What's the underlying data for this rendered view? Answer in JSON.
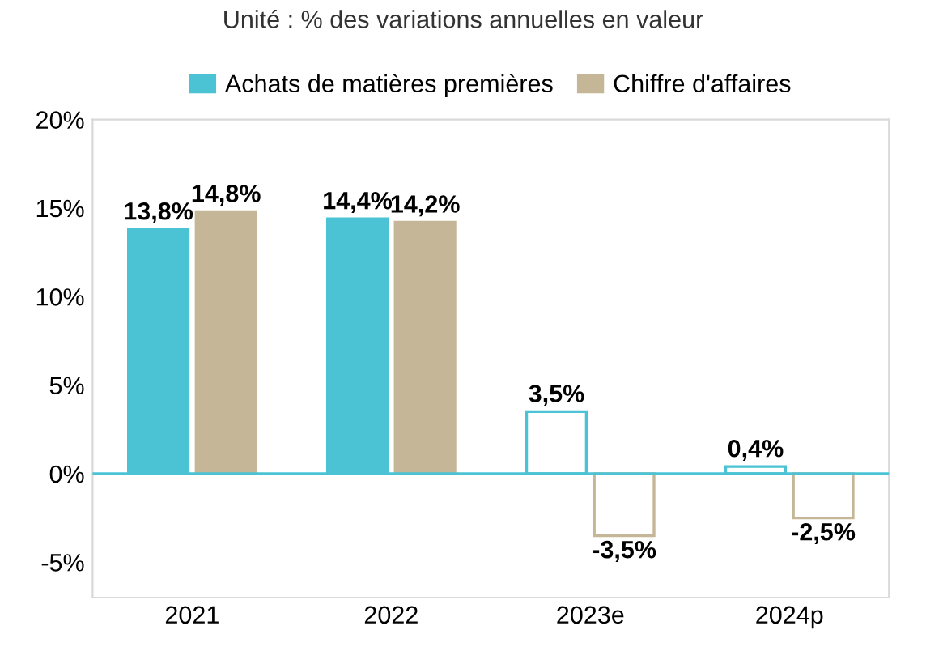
{
  "chart_data": {
    "type": "bar",
    "title": "Unité : % des variations annuelles en valeur",
    "categories": [
      "2021",
      "2022",
      "2023e",
      "2024p"
    ],
    "series": [
      {
        "name": "Achats de matières premières",
        "color": "#4bc3d4",
        "colors": [
          "#4bc3d4",
          "#4bc3d4",
          "#ffffff",
          "#ffffff"
        ],
        "values": [
          13.8,
          14.4,
          3.5,
          0.4
        ],
        "value_labels": [
          "13,8%",
          "14,4%",
          "3,5%",
          "0,4%"
        ]
      },
      {
        "name": "Chiffre d'affaires",
        "color": "#c4b696",
        "colors": [
          "#c4b696",
          "#c4b696",
          "#ffffff",
          "#ffffff"
        ],
        "values": [
          14.8,
          14.2,
          -3.5,
          -2.5
        ],
        "value_labels": [
          "14,8%",
          "14,2%",
          "-3,5%",
          "-2,5%"
        ]
      }
    ],
    "ylim": [
      -7,
      20
    ],
    "yticks": [
      {
        "value": -5,
        "label": "-5%"
      },
      {
        "value": 0,
        "label": "0%"
      },
      {
        "value": 5,
        "label": "5%"
      },
      {
        "value": 10,
        "label": "10%"
      },
      {
        "value": 15,
        "label": "15%"
      },
      {
        "value": 20,
        "label": "20%"
      }
    ],
    "ref_lines": [
      {
        "axis": "y",
        "value": 0,
        "color": "#4bc3d4"
      }
    ],
    "grid": false,
    "legend": "top"
  }
}
